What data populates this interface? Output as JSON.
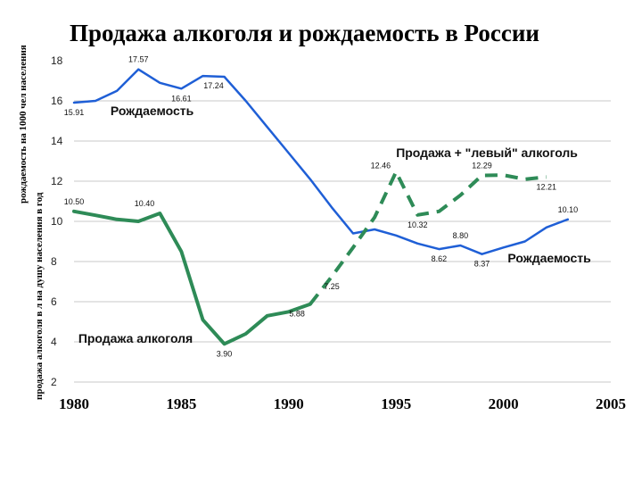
{
  "title": "Продажа алкоголя и рождаемость в России",
  "ylabel_birth": "рождаемость на 1000 чел населения",
  "ylabel_alcohol": "продажа алкоголя в л на душу населения в год",
  "colors": {
    "birth": "#1f5fd6",
    "alcohol": "#2e8b57"
  },
  "chart_data": {
    "type": "line",
    "title": "Продажа алкоголя и рождаемость в России",
    "ylim": [
      2,
      18
    ],
    "xlim": [
      1980,
      2005
    ],
    "yticks": [
      "18",
      "16",
      "14",
      "12",
      "10",
      "8",
      "6",
      "4",
      "2"
    ],
    "xticks": [
      "1980",
      "1985",
      "1990",
      "1995",
      "2000",
      "2005"
    ],
    "grid": "horizontal",
    "series": [
      {
        "key": "birth",
        "style": "solid",
        "color": "#1f5fd6",
        "x": [
          1980,
          1981,
          1982,
          1983,
          1984,
          1985,
          1986,
          1987,
          1988,
          1989,
          1990,
          1991,
          1992,
          1993,
          1994,
          1995,
          1996,
          1997,
          1998,
          1999,
          2000,
          2001,
          2002,
          2003
        ],
        "values": [
          15.91,
          16.0,
          16.5,
          17.57,
          16.9,
          16.61,
          17.24,
          17.2,
          16.0,
          14.7,
          13.4,
          12.1,
          10.7,
          9.4,
          9.6,
          9.3,
          8.9,
          8.62,
          8.8,
          8.37,
          8.7,
          9.0,
          9.7,
          10.1
        ]
      },
      {
        "key": "alcohol",
        "style": "solid",
        "color": "#2e8b57",
        "x": [
          1980,
          1981,
          1982,
          1983,
          1984,
          1985,
          1986,
          1987,
          1988,
          1989,
          1990,
          1991
        ],
        "values": [
          10.5,
          10.3,
          10.1,
          10.0,
          10.4,
          8.5,
          5.1,
          3.9,
          4.4,
          5.3,
          5.5,
          5.88
        ]
      },
      {
        "key": "alcohol_total",
        "style": "dashed",
        "color": "#2e8b57",
        "x": [
          1991,
          1992,
          1993,
          1994,
          1995,
          1996,
          1997,
          1998,
          1999,
          2000,
          2001,
          2002
        ],
        "values": [
          5.88,
          7.25,
          8.7,
          10.2,
          12.46,
          10.32,
          10.5,
          11.3,
          12.29,
          12.3,
          12.1,
          12.21
        ]
      }
    ],
    "data_labels": [
      {
        "text": "17.57",
        "x": 1983,
        "y": 17.57,
        "pos": "above"
      },
      {
        "text": "17.24",
        "x": 1986.5,
        "y": 17.24,
        "pos": "below"
      },
      {
        "text": "16.61",
        "x": 1985,
        "y": 16.61,
        "pos": "below"
      },
      {
        "text": "15.91",
        "x": 1980,
        "y": 15.91,
        "pos": "below"
      },
      {
        "text": "12.46",
        "x": 1995,
        "y": 12.46,
        "pos": "left"
      },
      {
        "text": "12.29",
        "x": 1999,
        "y": 12.29,
        "pos": "above"
      },
      {
        "text": "12.21",
        "x": 2002,
        "y": 12.21,
        "pos": "below"
      },
      {
        "text": "10.10",
        "x": 2003,
        "y": 10.1,
        "pos": "above"
      },
      {
        "text": "10.50",
        "x": 1980,
        "y": 10.5,
        "pos": "above"
      },
      {
        "text": "10.40",
        "x": 1984,
        "y": 10.4,
        "pos": "above-left"
      },
      {
        "text": "10.32",
        "x": 1996,
        "y": 10.32,
        "pos": "below"
      },
      {
        "text": "8.80",
        "x": 1998,
        "y": 8.8,
        "pos": "above"
      },
      {
        "text": "8.62",
        "x": 1997,
        "y": 8.62,
        "pos": "below"
      },
      {
        "text": "8.37",
        "x": 1999,
        "y": 8.37,
        "pos": "below"
      },
      {
        "text": "7.25",
        "x": 1992,
        "y": 7.25,
        "pos": "below"
      },
      {
        "text": "5.88",
        "x": 1991,
        "y": 5.88,
        "pos": "below-left"
      },
      {
        "text": "3.90",
        "x": 1987,
        "y": 3.9,
        "pos": "below"
      }
    ],
    "series_labels": [
      {
        "text": "Рождаемость",
        "x": 1981.7,
        "y": 15.3
      },
      {
        "text": "Продажа + \"левый\" алкоголь",
        "x": 1995.0,
        "y": 13.2
      },
      {
        "text": "Рождаемость",
        "x": 2000.2,
        "y": 7.95
      },
      {
        "text": "Продажа алкоголя",
        "x": 1980.2,
        "y": 3.95
      }
    ]
  }
}
